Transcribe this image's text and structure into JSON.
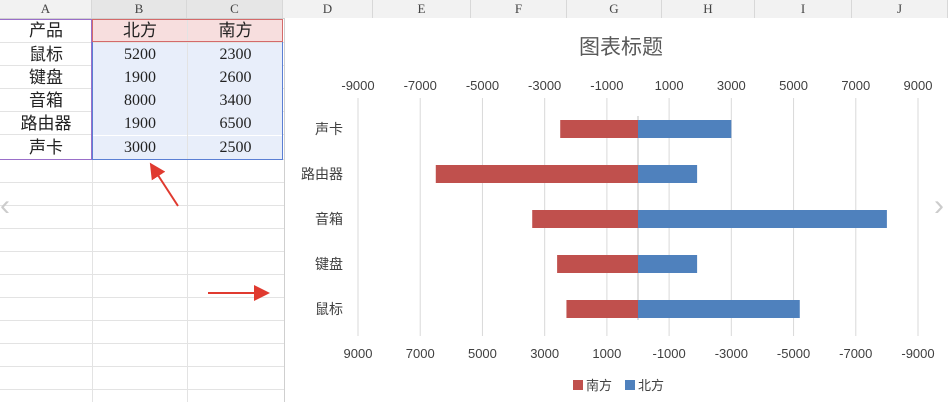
{
  "spreadsheet": {
    "columns": [
      "A",
      "B",
      "C",
      "D",
      "E",
      "F",
      "G",
      "H",
      "I",
      "J"
    ],
    "table": {
      "headers": [
        "产品",
        "北方",
        "南方"
      ],
      "rows": [
        [
          "鼠标",
          "5200",
          "2300"
        ],
        [
          "键盘",
          "1900",
          "2600"
        ],
        [
          "音箱",
          "8000",
          "3400"
        ],
        [
          "路由器",
          "1900",
          "6500"
        ],
        [
          "声卡",
          "3000",
          "2500"
        ]
      ]
    }
  },
  "chart_data": {
    "type": "bar",
    "orientation": "horizontal",
    "title": "图表标题",
    "categories": [
      "声卡",
      "路由器",
      "音箱",
      "键盘",
      "鼠标"
    ],
    "series": [
      {
        "name": "南方",
        "values": [
          -2500,
          -6500,
          -3400,
          -2600,
          -2300
        ],
        "color": "#c0504d"
      },
      {
        "name": "北方",
        "values": [
          3000,
          1900,
          8000,
          1900,
          5200
        ],
        "color": "#4f81bd"
      }
    ],
    "xlim": [
      -9000,
      9000
    ],
    "top_ticks": [
      "-9000",
      "-7000",
      "-5000",
      "-3000",
      "-1000",
      "1000",
      "3000",
      "5000",
      "7000",
      "9000"
    ],
    "bottom_ticks": [
      "9000",
      "7000",
      "5000",
      "3000",
      "1000",
      "-1000",
      "-3000",
      "-5000",
      "-7000",
      "-9000"
    ],
    "legend": [
      "南方",
      "北方"
    ],
    "legend_position": "bottom",
    "gridlines": true
  },
  "colors": {
    "south": "#c0504d",
    "north": "#4f81bd",
    "annotation_arrow": "#e03a2f"
  }
}
